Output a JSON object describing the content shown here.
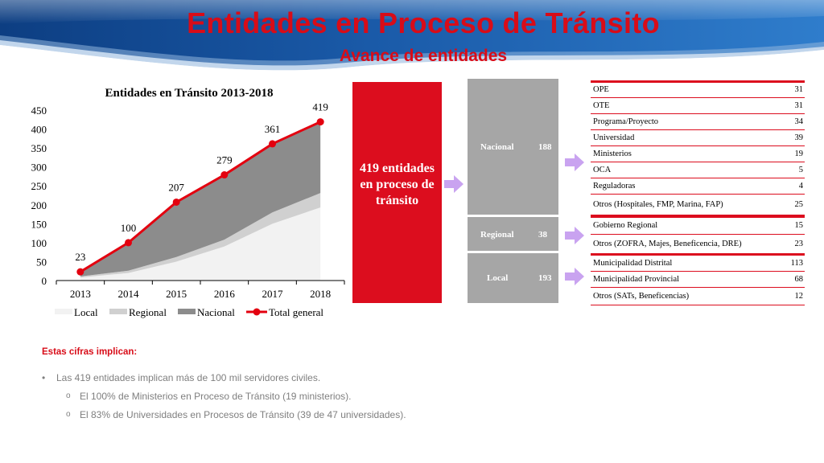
{
  "header": {
    "title": "Entidades en Proceso de Tránsito",
    "subtitle": "Avance de entidades"
  },
  "chart_data": {
    "type": "area",
    "title": "Entidades en Tránsito 2013-2018",
    "x": [
      "2013",
      "2014",
      "2015",
      "2016",
      "2017",
      "2018"
    ],
    "ylim": [
      0,
      450
    ],
    "yticks": [
      0,
      50,
      100,
      150,
      200,
      250,
      300,
      350,
      400,
      450
    ],
    "stacked": true,
    "series": [
      {
        "name": "Local",
        "kind": "area",
        "color": "#f2f2f2",
        "values": [
          8,
          20,
          50,
          90,
          150,
          193
        ]
      },
      {
        "name": "Regional",
        "kind": "area",
        "color": "#d0d0d0",
        "values": [
          3,
          6,
          12,
          18,
          30,
          38
        ]
      },
      {
        "name": "Nacional",
        "kind": "area",
        "color": "#8c8c8c",
        "values": [
          12,
          74,
          145,
          171,
          181,
          188
        ]
      },
      {
        "name": "Total general",
        "kind": "line",
        "color": "#e3000f",
        "values": [
          23,
          100,
          207,
          279,
          361,
          419
        ]
      }
    ],
    "data_labels": [
      "23",
      "100",
      "207",
      "279",
      "361",
      "419"
    ],
    "legend": "bottom",
    "grid": false
  },
  "summary": {
    "total_text": "419 entidades en proceso de tránsito"
  },
  "levels": [
    {
      "label": "Nacional",
      "value": "188"
    },
    {
      "label": "Regional",
      "value": "38"
    },
    {
      "label": "Local",
      "value": "193"
    }
  ],
  "table": [
    {
      "name": "OPE",
      "value": "31"
    },
    {
      "name": "OTE",
      "value": "31"
    },
    {
      "name": "Programa/Proyecto",
      "value": "34"
    },
    {
      "name": "Universidad",
      "value": "39"
    },
    {
      "name": "Ministerios",
      "value": "19"
    },
    {
      "name": "OCA",
      "value": "5"
    },
    {
      "name": "Reguladoras",
      "value": "4"
    },
    {
      "name": "Otros (Hospitales, FMP, Marina, FAP)",
      "value": "25"
    },
    {
      "name": "Gobierno Regional",
      "value": "15"
    },
    {
      "name": "Otros (ZOFRA, Majes, Beneficencia, DRE)",
      "value": "23"
    },
    {
      "name": "Municipalidad Distrital",
      "value": "113"
    },
    {
      "name": "Municipalidad Provincial",
      "value": "68"
    },
    {
      "name": "Otros (SATs, Beneficencias)",
      "value": "12"
    }
  ],
  "implications": {
    "title": "Estas cifras implican:",
    "bullet_glyph": "•",
    "sub_glyph": "o",
    "bullet": "Las 419 entidades implican más de 100 mil servidores civiles.",
    "subbullets": [
      "El 100% de Ministerios en Proceso de Tránsito (19 ministerios).",
      "El 83% de Universidades en Procesos de Tránsito (39 de 47 universidades)."
    ]
  },
  "colors": {
    "accent_red": "#dc0d1e",
    "arrow": "#c9a3f0",
    "level_box": "#a6a6a6"
  }
}
